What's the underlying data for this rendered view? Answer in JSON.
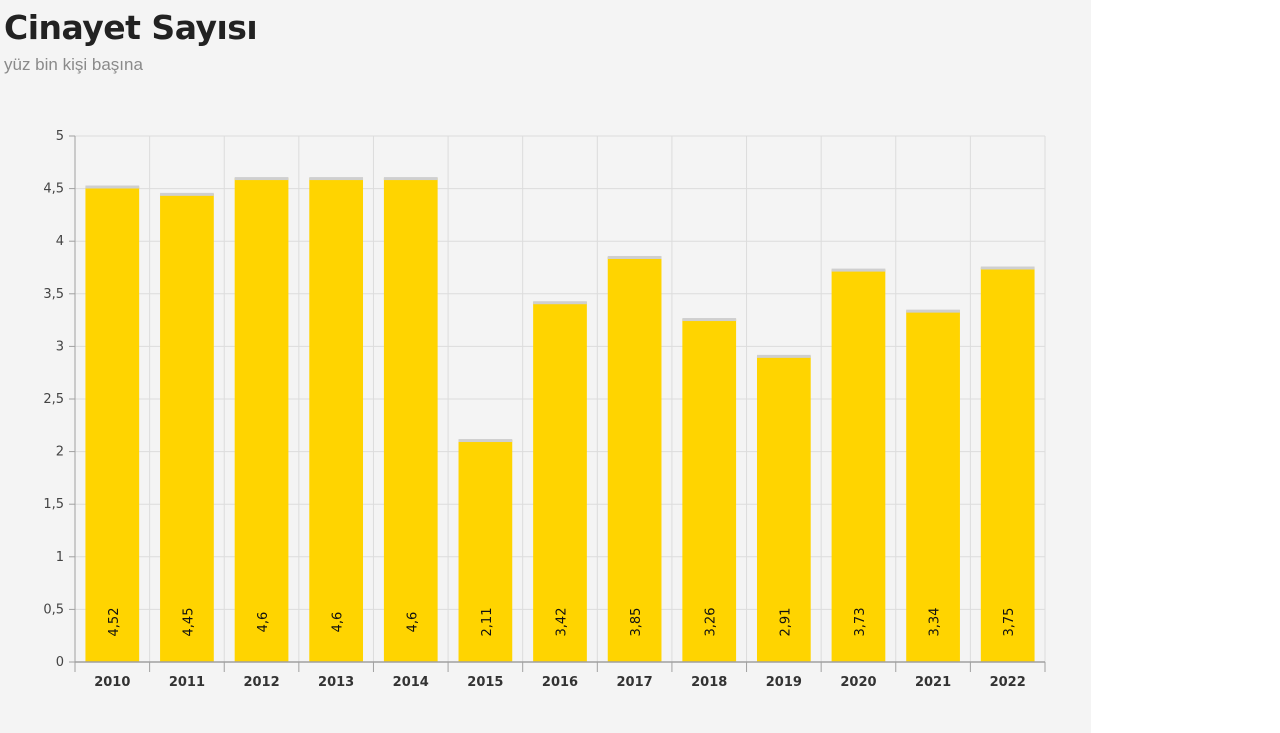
{
  "title": "Cinayet Sayısı",
  "subtitle": "yüz bin kişi başına",
  "colors": {
    "bar": "#ffd400",
    "bar_top": "#cfcfcf",
    "grid": "#dcdcdc",
    "axis": "#a0a0a0",
    "background": "#f4f4f4"
  },
  "chart_data": {
    "type": "bar",
    "categories": [
      "2010",
      "2011",
      "2012",
      "2013",
      "2014",
      "2015",
      "2016",
      "2017",
      "2018",
      "2019",
      "2020",
      "2021",
      "2022"
    ],
    "values": [
      4.52,
      4.45,
      4.6,
      4.6,
      4.6,
      2.11,
      3.42,
      3.85,
      3.26,
      2.91,
      3.73,
      3.34,
      3.75
    ],
    "data_labels": [
      "4,52",
      "4,45",
      "4,6",
      "4,6",
      "4,6",
      "2,11",
      "3,42",
      "3,85",
      "3,26",
      "2,91",
      "3,73",
      "3,34",
      "3,75"
    ],
    "yticks": [
      0,
      0.5,
      1,
      1.5,
      2,
      2.5,
      3,
      3.5,
      4,
      4.5,
      5
    ],
    "ytick_labels": [
      "0",
      "0,5",
      "1",
      "1,5",
      "2",
      "2,5",
      "3",
      "3,5",
      "4",
      "4,5",
      "5"
    ],
    "ylim": [
      0,
      5
    ],
    "grid": true,
    "legend": "none"
  }
}
